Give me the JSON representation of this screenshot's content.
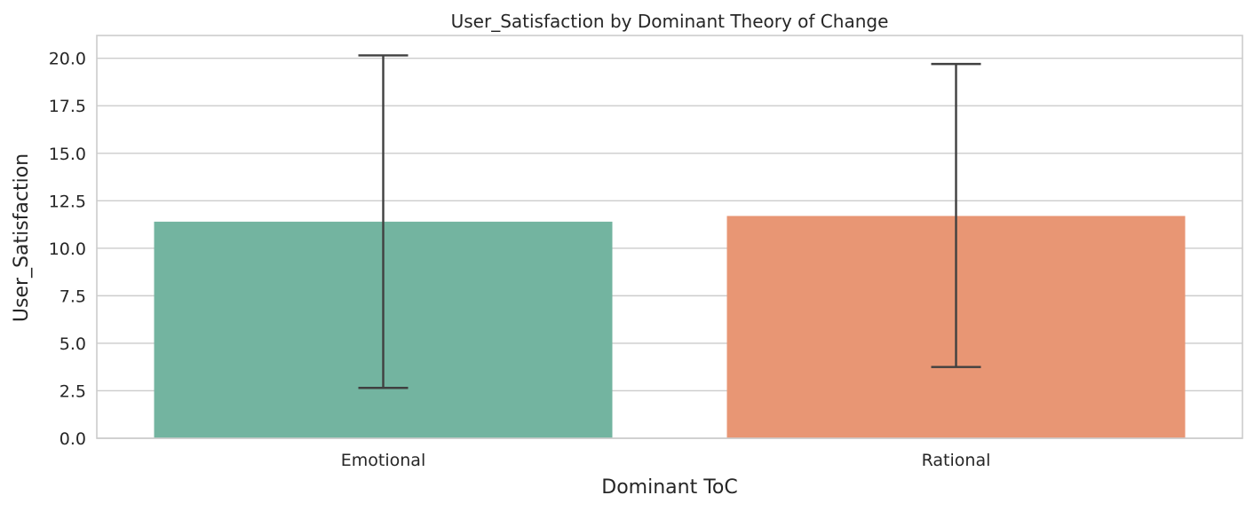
{
  "chart_data": {
    "type": "bar",
    "title": "User_Satisfaction by Dominant Theory of Change",
    "xlabel": "Dominant ToC",
    "ylabel": "User_Satisfaction",
    "categories": [
      "Emotional",
      "Rational"
    ],
    "values": [
      11.4,
      11.7
    ],
    "error_low": [
      2.65,
      3.75
    ],
    "error_high": [
      20.15,
      19.7
    ],
    "colors": [
      "#73b4a0",
      "#e89674"
    ],
    "ylim": [
      0,
      21.2
    ],
    "yticks": [
      "0.0",
      "2.5",
      "5.0",
      "7.5",
      "10.0",
      "12.5",
      "15.0",
      "17.5",
      "20.0"
    ],
    "grid": true,
    "legend": "none"
  }
}
